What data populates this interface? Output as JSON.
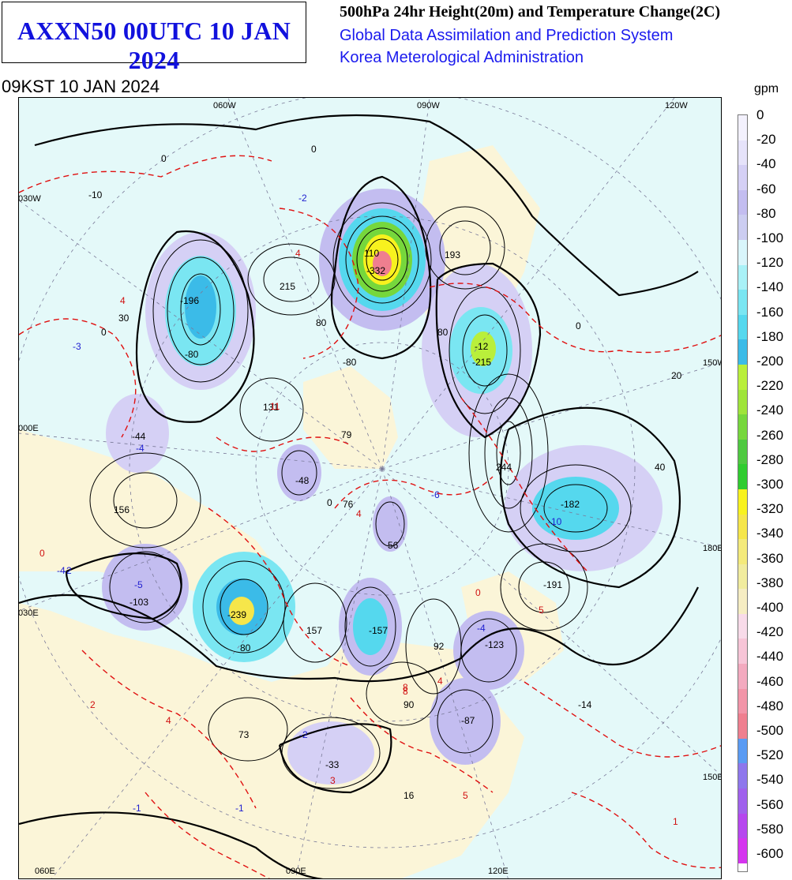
{
  "header": {
    "box_title": "AXXN50 00UTC 10 JAN 2024",
    "product_title": "500hPa 24hr Height(20m) and Temperature Change(2C)",
    "system_name": "Global Data Assimilation and Prediction System",
    "agency": "Korea Meterological Administration",
    "valid_time": "09KST 10 JAN 2024"
  },
  "colorbar": {
    "unit": "gpm",
    "labels": [
      "0",
      "-20",
      "-40",
      "-60",
      "-80",
      "-100",
      "-120",
      "-140",
      "-160",
      "-180",
      "-200",
      "-220",
      "-240",
      "-260",
      "-280",
      "-300",
      "-320",
      "-340",
      "-360",
      "-380",
      "-400",
      "-420",
      "-440",
      "-460",
      "-480",
      "-500",
      "-520",
      "-540",
      "-560",
      "-580",
      "-600"
    ],
    "colors": [
      "#f3f1fd",
      "#e6e3fa",
      "#d5d0f5",
      "#c3bdf0",
      "#cccdf1",
      "#d9f5fb",
      "#a9f1f7",
      "#7ae6f2",
      "#55d8ee",
      "#3bbbe8",
      "#b9ef3b",
      "#9fe43a",
      "#76d73c",
      "#4ec940",
      "#2fcc2f",
      "#f8f21e",
      "#f6e64a",
      "#f4ea7b",
      "#f1ec9e",
      "#f6edc3",
      "#f8dbe9",
      "#f7c5d7",
      "#f3aabf",
      "#f295a8",
      "#ef7f8f",
      "#5a9bf3",
      "#8e77ec",
      "#a061ec",
      "#b647ee",
      "#d534ef"
    ]
  },
  "map": {
    "grid_labels_top": [
      "060W",
      "090W",
      "120W"
    ],
    "grid_labels_bottom": [
      "060E",
      "090E",
      "120E"
    ],
    "grid_labels_left": [
      "030W",
      "000E",
      "030E"
    ],
    "grid_labels_right": [
      "150W",
      "180E",
      "150E"
    ],
    "height_change_values": [
      "-10",
      "215",
      "-196",
      "30",
      "-80",
      "80",
      "110",
      "-332",
      "193",
      "-80",
      "80",
      "-12",
      "-215",
      "20",
      "131",
      "79",
      "-44",
      "-48",
      "76",
      "244",
      "40",
      "156",
      "56",
      "-182",
      "-191",
      "-103",
      "-239",
      "157",
      "-157",
      "92",
      "-123",
      "80",
      "90",
      "73",
      "-87",
      "-14",
      "-33",
      "16",
      "0",
      "0",
      "0",
      "0",
      "0"
    ],
    "temp_change_values": [
      "-2",
      "4",
      "4",
      "-3",
      "11",
      "4",
      "-4",
      "-6",
      "-4",
      "0",
      "-5",
      "8",
      "5",
      "-2",
      "2",
      "4",
      "8",
      "4",
      "3",
      "5",
      "1",
      "-2",
      "-1",
      "-1",
      "-10",
      "-4",
      "0"
    ]
  }
}
